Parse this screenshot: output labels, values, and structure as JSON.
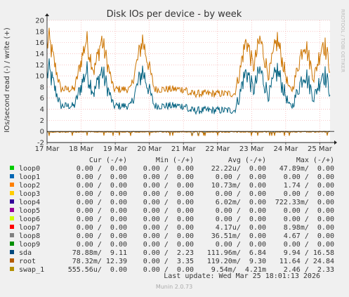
{
  "chart_data": {
    "type": "line",
    "title": "Disk IOs per device - by week",
    "ylabel": "IOs/second read (-) / write (+)",
    "side_label": "RRDTOOL / TOBI OETIKER",
    "ylim": [
      -2,
      20
    ],
    "yticks": [
      -2,
      0,
      2,
      4,
      6,
      8,
      10,
      12,
      14,
      16,
      18,
      20
    ],
    "x_labels": [
      "17 Mar",
      "18 Mar",
      "19 Mar",
      "20 Mar",
      "21 Mar",
      "22 Mar",
      "23 Mar",
      "24 Mar",
      "25 Mar"
    ],
    "grid": true,
    "series": [
      {
        "name": "sda",
        "color": "#00607f",
        "baseline": 4.6,
        "peak": 11.0,
        "neg_scale": 0.35
      },
      {
        "name": "root",
        "color": "#cc7400",
        "baseline": 7.6,
        "peak": 16.6,
        "neg_scale": 0.5
      }
    ]
  },
  "legend": {
    "headers": {
      "cur": "Cur (-/+)",
      "min": "Min (-/+)",
      "avg": "Avg (-/+)",
      "max": "Max (-/+)"
    },
    "rows": [
      {
        "name": "loop0",
        "color": "#00cc00",
        "cur": "0.00 /  0.00",
        "min": "0.00 /  0.00",
        "avg": "22.22u/  0.00",
        "max": "47.89m/  0.00"
      },
      {
        "name": "loop1",
        "color": "#0066b3",
        "cur": "0.00 /  0.00",
        "min": "0.00 /  0.00",
        "avg": "0.00 /  0.00",
        "max": "0.00 /  0.00"
      },
      {
        "name": "loop2",
        "color": "#ff8000",
        "cur": "0.00 /  0.00",
        "min": "0.00 /  0.00",
        "avg": "10.73m/  0.00",
        "max": "1.74 /  0.00"
      },
      {
        "name": "loop3",
        "color": "#ffcc00",
        "cur": "0.00 /  0.00",
        "min": "0.00 /  0.00",
        "avg": "0.00 /  0.00",
        "max": "0.00 /  0.00"
      },
      {
        "name": "loop4",
        "color": "#330099",
        "cur": "0.00 /  0.00",
        "min": "0.00 /  0.00",
        "avg": "6.02m/  0.00",
        "max": "722.33m/  0.00"
      },
      {
        "name": "loop5",
        "color": "#990099",
        "cur": "0.00 /  0.00",
        "min": "0.00 /  0.00",
        "avg": "0.00 /  0.00",
        "max": "0.00 /  0.00"
      },
      {
        "name": "loop6",
        "color": "#ccff00",
        "cur": "0.00 /  0.00",
        "min": "0.00 /  0.00",
        "avg": "0.00 /  0.00",
        "max": "0.00 /  0.00"
      },
      {
        "name": "loop7",
        "color": "#ff0000",
        "cur": "0.00 /  0.00",
        "min": "0.00 /  0.00",
        "avg": "4.17u/  0.00",
        "max": "8.98m/  0.00"
      },
      {
        "name": "loop8",
        "color": "#808080",
        "cur": "0.00 /  0.00",
        "min": "0.00 /  0.00",
        "avg": "36.51m/  0.00",
        "max": "4.67 /  0.00"
      },
      {
        "name": "loop9",
        "color": "#008f00",
        "cur": "0.00 /  0.00",
        "min": "0.00 /  0.00",
        "avg": "0.00 /  0.00",
        "max": "0.00 /  0.00"
      },
      {
        "name": "sda",
        "color": "#00487d",
        "cur": "78.88m/  9.11",
        "min": "0.00 /  2.23",
        "avg": "111.96m/  6.84",
        "max": "9.94 / 16.58"
      },
      {
        "name": "root",
        "color": "#b35a00",
        "cur": "78.32m/ 12.39",
        "min": "0.00 /  3.35",
        "avg": "119.20m/  9.30",
        "max": "11.64 / 24.84"
      },
      {
        "name": "swap_1",
        "color": "#b38f00",
        "cur": "555.56u/  0.00",
        "min": "0.00 /  0.00",
        "avg": "9.54m/  4.21m",
        "max": "2.46 /  2.33"
      }
    ]
  },
  "last_update": "Last update: Wed Mar 25 18:01:13 2026",
  "footer": "Munin 2.0.73"
}
